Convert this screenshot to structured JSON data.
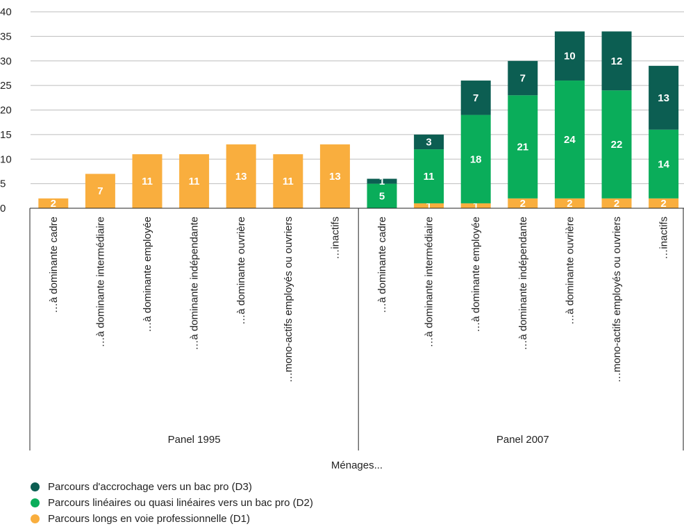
{
  "chart_data": {
    "type": "bar",
    "stacked": true,
    "title": "",
    "xlabel": "Ménages...",
    "ylabel": "",
    "ylim": [
      0,
      40
    ],
    "yticks": [
      0,
      5,
      10,
      15,
      20,
      25,
      30,
      35,
      40
    ],
    "grid": true,
    "legend_position": "bottom-left",
    "groups": [
      {
        "name": "Panel 1995",
        "categories": [
          "…à dominante cadre",
          "…à dominante intermédiaire",
          "…à dominante employée",
          "…à dominante indépendante",
          "…à dominante ouvrière",
          "…mono-actifs employés ou ouvriers",
          "…inactifs"
        ],
        "series": [
          {
            "name": "Parcours longs en voie professionnelle (D1)",
            "values": [
              2,
              7,
              11,
              11,
              13,
              11,
              13
            ]
          },
          {
            "name": "Parcours linéaires ou quasi linéaires vers un bac pro (D2)",
            "values": [
              null,
              null,
              null,
              null,
              null,
              null,
              null
            ]
          },
          {
            "name": "Parcours d'accrochage vers un bac pro (D3)",
            "values": [
              null,
              null,
              null,
              null,
              null,
              null,
              null
            ]
          }
        ]
      },
      {
        "name": "Panel 2007",
        "categories": [
          "…à dominante cadre",
          "…à dominante intermédiaire",
          "…à dominante employée",
          "…à dominante indépendante",
          "…à dominante ouvrière",
          "…mono-actifs employés ou ouvriers",
          "…inactifs"
        ],
        "series": [
          {
            "name": "Parcours longs en voie professionnelle (D1)",
            "values": [
              null,
              1,
              1,
              2,
              2,
              2,
              2
            ]
          },
          {
            "name": "Parcours linéaires ou quasi linéaires vers un bac pro (D2)",
            "values": [
              5,
              11,
              18,
              21,
              24,
              22,
              14
            ]
          },
          {
            "name": "Parcours d'accrochage vers un bac pro (D3)",
            "values": [
              1,
              3,
              7,
              7,
              10,
              12,
              13
            ]
          }
        ]
      }
    ],
    "legend": [
      {
        "name": "Parcours d'accrochage vers un bac pro (D3)",
        "color": "#0c5e52"
      },
      {
        "name": "Parcours linéaires ou quasi linéaires vers un bac pro (D2)",
        "color": "#0aad5a"
      },
      {
        "name": "Parcours longs en voie professionnelle (D1)",
        "color": "#f9ae3e"
      }
    ],
    "colors": {
      "D1": "#f9ae3e",
      "D2": "#0aad5a",
      "D3": "#0c5e52",
      "grid": "#bdbdbd",
      "axis": "#222222"
    }
  }
}
